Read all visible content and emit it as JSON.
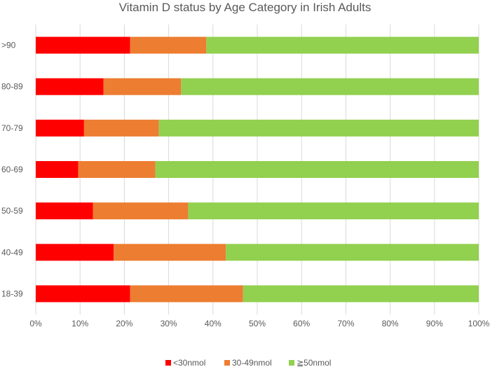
{
  "chart_data": {
    "type": "bar",
    "orientation": "horizontal",
    "stacked": true,
    "title": "Vitamin D status by Age Category in Irish Adults",
    "xlabel": "",
    "ylabel": "",
    "xlim": [
      0,
      100
    ],
    "x_ticks": [
      "0%",
      "10%",
      "20%",
      "30%",
      "40%",
      "50%",
      "60%",
      "70%",
      "80%",
      "90%",
      "100%"
    ],
    "categories": [
      ">90",
      "80-89",
      "70-79",
      "60-69",
      "50-59",
      "40-49",
      "18-39"
    ],
    "series": [
      {
        "name": "<30nmol",
        "color": "#ff0000",
        "values": [
          21.3,
          15.3,
          10.9,
          9.6,
          12.9,
          17.6,
          21.3
        ]
      },
      {
        "name": "30-49nmol",
        "color": "#ed7d31",
        "values": [
          17.2,
          17.5,
          16.9,
          17.4,
          21.5,
          25.3,
          25.5
        ]
      },
      {
        "name": "≧50nmol",
        "color": "#92d050",
        "values": [
          61.5,
          67.2,
          72.2,
          73.0,
          65.6,
          57.1,
          53.2
        ]
      }
    ],
    "legend_position": "bottom",
    "grid": true
  }
}
